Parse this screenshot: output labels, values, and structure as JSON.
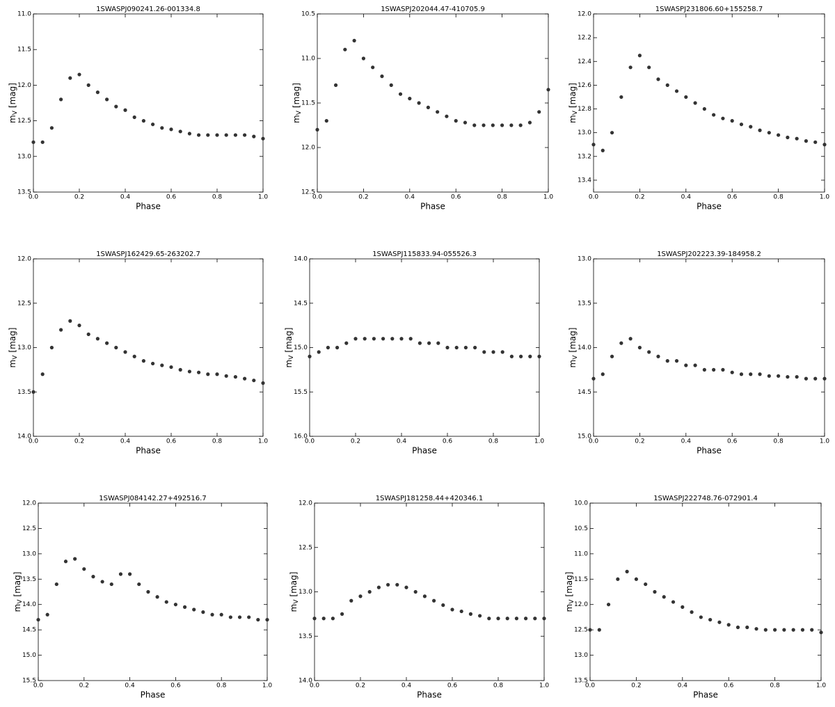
{
  "chart_data": [
    {
      "type": "scatter",
      "title": "1SWASPJ090241.26-001334.8",
      "xlabel": "Phase",
      "ylabel": "m",
      "ylabel_sub": "V",
      "ylabel_unit": "[mag]",
      "invert_y": true,
      "color": "#333333",
      "xlim": [
        0,
        1
      ],
      "ylim": [
        11,
        13.5
      ],
      "xticks": [
        {
          "value": 0,
          "label": "0.0"
        },
        0.2,
        0.4,
        0.6,
        0.8,
        {
          "value": 1,
          "label": "1.0"
        }
      ],
      "yticks": [
        {
          "value": 11,
          "label": "11.0"
        },
        11.5,
        {
          "value": 12,
          "label": "12.0"
        },
        12.5,
        {
          "value": 13,
          "label": "13.0"
        },
        13.5
      ],
      "x": [
        0,
        0.04,
        0.08,
        0.12,
        0.16,
        0.2,
        0.24,
        0.28,
        0.32,
        0.36,
        0.4,
        0.44,
        0.48,
        0.52,
        0.56,
        0.6,
        0.64,
        0.68,
        0.72,
        0.76,
        0.8,
        0.84,
        0.88,
        0.92,
        0.96,
        1
      ],
      "y": [
        12.8,
        12.8,
        12.6,
        12.2,
        11.9,
        11.85,
        12.0,
        12.1,
        12.2,
        12.3,
        12.35,
        12.45,
        12.5,
        12.55,
        12.6,
        12.62,
        12.65,
        12.68,
        12.7,
        12.7,
        12.7,
        12.7,
        12.7,
        12.7,
        12.72,
        12.75
      ]
    },
    {
      "type": "scatter",
      "title": "1SWASPJ202044.47-410705.9",
      "xlabel": "Phase",
      "ylabel": "m",
      "ylabel_sub": "V",
      "ylabel_unit": "[mag]",
      "invert_y": true,
      "color": "#333333",
      "xlim": [
        0,
        1
      ],
      "ylim": [
        10.5,
        12.5
      ],
      "xticks": [
        {
          "value": 0,
          "label": "0.0"
        },
        0.2,
        0.4,
        0.6,
        0.8,
        {
          "value": 1,
          "label": "1.0"
        }
      ],
      "yticks": [
        10.5,
        {
          "value": 11,
          "label": "11.0"
        },
        11.5,
        {
          "value": 12,
          "label": "12.0"
        },
        12.5
      ],
      "x": [
        0,
        0.04,
        0.08,
        0.12,
        0.16,
        0.2,
        0.24,
        0.28,
        0.32,
        0.36,
        0.4,
        0.44,
        0.48,
        0.52,
        0.56,
        0.6,
        0.64,
        0.68,
        0.72,
        0.76,
        0.8,
        0.84,
        0.88,
        0.92,
        0.96,
        1
      ],
      "y": [
        11.8,
        11.7,
        11.3,
        10.9,
        10.8,
        11.0,
        11.1,
        11.2,
        11.3,
        11.4,
        11.45,
        11.5,
        11.55,
        11.6,
        11.65,
        11.7,
        11.72,
        11.75,
        11.75,
        11.75,
        11.75,
        11.75,
        11.75,
        11.72,
        11.6,
        11.35
      ]
    },
    {
      "type": "scatter",
      "title": "1SWASPJ231806.60+155258.7",
      "xlabel": "Phase",
      "ylabel": "m",
      "ylabel_sub": "V",
      "ylabel_unit": "[mag]",
      "invert_y": true,
      "color": "#333333",
      "xlim": [
        0,
        1
      ],
      "ylim": [
        12,
        13.5
      ],
      "xticks": [
        {
          "value": 0,
          "label": "0.0"
        },
        0.2,
        0.4,
        0.6,
        0.8,
        {
          "value": 1,
          "label": "1.0"
        }
      ],
      "yticks": [
        {
          "value": 12,
          "label": "12.0"
        },
        12.2,
        12.4,
        12.6,
        12.8,
        {
          "value": 13,
          "label": "13.0"
        },
        13.2,
        13.4
      ],
      "x": [
        0,
        0.04,
        0.08,
        0.12,
        0.16,
        0.2,
        0.24,
        0.28,
        0.32,
        0.36,
        0.4,
        0.44,
        0.48,
        0.52,
        0.56,
        0.6,
        0.64,
        0.68,
        0.72,
        0.76,
        0.8,
        0.84,
        0.88,
        0.92,
        0.96,
        1
      ],
      "y": [
        13.1,
        13.15,
        13.0,
        12.7,
        12.45,
        12.35,
        12.45,
        12.55,
        12.6,
        12.65,
        12.7,
        12.75,
        12.8,
        12.85,
        12.88,
        12.9,
        12.93,
        12.95,
        12.98,
        13.0,
        13.02,
        13.04,
        13.05,
        13.07,
        13.08,
        13.1
      ]
    },
    {
      "type": "scatter",
      "title": "1SWASPJ162429.65-263202.7",
      "xlabel": "Phase",
      "ylabel": "m",
      "ylabel_sub": "V",
      "ylabel_unit": "[mag]",
      "invert_y": true,
      "color": "#333333",
      "xlim": [
        0,
        1
      ],
      "ylim": [
        12,
        14
      ],
      "xticks": [
        {
          "value": 0,
          "label": "0.0"
        },
        0.2,
        0.4,
        0.6,
        0.8,
        {
          "value": 1,
          "label": "1.0"
        }
      ],
      "yticks": [
        {
          "value": 12,
          "label": "12.0"
        },
        12.5,
        {
          "value": 13,
          "label": "13.0"
        },
        13.5,
        {
          "value": 14,
          "label": "14.0"
        }
      ],
      "x": [
        0,
        0.04,
        0.08,
        0.12,
        0.16,
        0.2,
        0.24,
        0.28,
        0.32,
        0.36,
        0.4,
        0.44,
        0.48,
        0.52,
        0.56,
        0.6,
        0.64,
        0.68,
        0.72,
        0.76,
        0.8,
        0.84,
        0.88,
        0.92,
        0.96,
        1
      ],
      "y": [
        13.5,
        13.3,
        13.0,
        12.8,
        12.7,
        12.75,
        12.85,
        12.9,
        12.95,
        13.0,
        13.05,
        13.1,
        13.15,
        13.18,
        13.2,
        13.22,
        13.25,
        13.27,
        13.28,
        13.3,
        13.3,
        13.32,
        13.33,
        13.35,
        13.37,
        13.4
      ]
    },
    {
      "type": "scatter",
      "title": "1SWASPJ115833.94-055526.3",
      "xlabel": "Phase",
      "ylabel": "m",
      "ylabel_sub": "V",
      "ylabel_unit": "[mag]",
      "invert_y": true,
      "color": "#333333",
      "xlim": [
        0,
        1
      ],
      "ylim": [
        14,
        16
      ],
      "xticks": [
        {
          "value": 0,
          "label": "0.0"
        },
        0.2,
        0.4,
        0.6,
        0.8,
        {
          "value": 1,
          "label": "1.0"
        }
      ],
      "yticks": [
        {
          "value": 14,
          "label": "14.0"
        },
        14.5,
        {
          "value": 15,
          "label": "15.0"
        },
        15.5,
        {
          "value": 16,
          "label": "16.0"
        }
      ],
      "x": [
        0,
        0.04,
        0.08,
        0.12,
        0.16,
        0.2,
        0.24,
        0.28,
        0.32,
        0.36,
        0.4,
        0.44,
        0.48,
        0.52,
        0.56,
        0.6,
        0.64,
        0.68,
        0.72,
        0.76,
        0.8,
        0.84,
        0.88,
        0.92,
        0.96,
        1
      ],
      "y": [
        15.1,
        15.05,
        15.0,
        15.0,
        14.95,
        14.9,
        14.9,
        14.9,
        14.9,
        14.9,
        14.9,
        14.9,
        14.95,
        14.95,
        14.95,
        15.0,
        15.0,
        15.0,
        15.0,
        15.05,
        15.05,
        15.05,
        15.1,
        15.1,
        15.1,
        15.1
      ]
    },
    {
      "type": "scatter",
      "title": "1SWASPJ202223.39-184958.2",
      "xlabel": "Phase",
      "ylabel": "m",
      "ylabel_sub": "V",
      "ylabel_unit": "[mag]",
      "invert_y": true,
      "color": "#333333",
      "xlim": [
        0,
        1
      ],
      "ylim": [
        13,
        15
      ],
      "xticks": [
        {
          "value": 0,
          "label": "0.0"
        },
        0.2,
        0.4,
        0.6,
        0.8,
        {
          "value": 1,
          "label": "1.0"
        }
      ],
      "yticks": [
        {
          "value": 13,
          "label": "13.0"
        },
        13.5,
        {
          "value": 14,
          "label": "14.0"
        },
        14.5,
        {
          "value": 15,
          "label": "15.0"
        }
      ],
      "x": [
        0,
        0.04,
        0.08,
        0.12,
        0.16,
        0.2,
        0.24,
        0.28,
        0.32,
        0.36,
        0.4,
        0.44,
        0.48,
        0.52,
        0.56,
        0.6,
        0.64,
        0.68,
        0.72,
        0.76,
        0.8,
        0.84,
        0.88,
        0.92,
        0.96,
        1
      ],
      "y": [
        14.35,
        14.3,
        14.1,
        13.95,
        13.9,
        14.0,
        14.05,
        14.1,
        14.15,
        14.15,
        14.2,
        14.2,
        14.25,
        14.25,
        14.25,
        14.28,
        14.3,
        14.3,
        14.3,
        14.32,
        14.32,
        14.33,
        14.33,
        14.35,
        14.35,
        14.35
      ]
    },
    {
      "type": "scatter",
      "title": "1SWASPJ084142.27+492516.7",
      "xlabel": "Phase",
      "ylabel": "m",
      "ylabel_sub": "V",
      "ylabel_unit": "[mag]",
      "invert_y": true,
      "color": "#333333",
      "xlim": [
        0,
        1
      ],
      "ylim": [
        12,
        15.5
      ],
      "xticks": [
        {
          "value": 0,
          "label": "0.0"
        },
        0.2,
        0.4,
        0.6,
        0.8,
        {
          "value": 1,
          "label": "1.0"
        }
      ],
      "yticks": [
        {
          "value": 12,
          "label": "12.0"
        },
        12.5,
        {
          "value": 13,
          "label": "13.0"
        },
        13.5,
        {
          "value": 14,
          "label": "14.0"
        },
        14.5,
        {
          "value": 15,
          "label": "15.0"
        },
        15.5
      ],
      "x": [
        0,
        0.04,
        0.08,
        0.12,
        0.16,
        0.2,
        0.24,
        0.28,
        0.32,
        0.36,
        0.4,
        0.44,
        0.48,
        0.52,
        0.56,
        0.6,
        0.64,
        0.68,
        0.72,
        0.76,
        0.8,
        0.84,
        0.88,
        0.92,
        0.96,
        1
      ],
      "y": [
        14.3,
        14.2,
        13.6,
        13.15,
        13.1,
        13.3,
        13.45,
        13.55,
        13.6,
        13.4,
        13.4,
        13.6,
        13.75,
        13.85,
        13.95,
        14.0,
        14.05,
        14.1,
        14.15,
        14.2,
        14.2,
        14.25,
        14.25,
        14.25,
        14.3,
        14.3
      ]
    },
    {
      "type": "scatter",
      "title": "1SWASPJ181258.44+420346.1",
      "xlabel": "Phase",
      "ylabel": "m",
      "ylabel_sub": "V",
      "ylabel_unit": "[mag]",
      "invert_y": true,
      "color": "#333333",
      "xlim": [
        0,
        1
      ],
      "ylim": [
        12,
        14
      ],
      "xticks": [
        {
          "value": 0,
          "label": "0.0"
        },
        0.2,
        0.4,
        0.6,
        0.8,
        {
          "value": 1,
          "label": "1.0"
        }
      ],
      "yticks": [
        {
          "value": 12,
          "label": "12.0"
        },
        12.5,
        {
          "value": 13,
          "label": "13.0"
        },
        13.5,
        {
          "value": 14,
          "label": "14.0"
        }
      ],
      "x": [
        0,
        0.04,
        0.08,
        0.12,
        0.16,
        0.2,
        0.24,
        0.28,
        0.32,
        0.36,
        0.4,
        0.44,
        0.48,
        0.52,
        0.56,
        0.6,
        0.64,
        0.68,
        0.72,
        0.76,
        0.8,
        0.84,
        0.88,
        0.92,
        0.96,
        1
      ],
      "y": [
        13.3,
        13.3,
        13.3,
        13.25,
        13.1,
        13.05,
        13.0,
        12.95,
        12.92,
        12.92,
        12.95,
        13.0,
        13.05,
        13.1,
        13.15,
        13.2,
        13.22,
        13.25,
        13.27,
        13.3,
        13.3,
        13.3,
        13.3,
        13.3,
        13.3,
        13.3
      ]
    },
    {
      "type": "scatter",
      "title": "1SWASPJ222748.76-072901.4",
      "xlabel": "Phase",
      "ylabel": "m",
      "ylabel_sub": "V",
      "ylabel_unit": "[mag]",
      "invert_y": true,
      "color": "#333333",
      "xlim": [
        0,
        1
      ],
      "ylim": [
        10,
        13.5
      ],
      "xticks": [
        {
          "value": 0,
          "label": "0.0"
        },
        0.2,
        0.4,
        0.6,
        0.8,
        {
          "value": 1,
          "label": "1.0"
        }
      ],
      "yticks": [
        {
          "value": 10,
          "label": "10.0"
        },
        10.5,
        {
          "value": 11,
          "label": "11.0"
        },
        11.5,
        {
          "value": 12,
          "label": "12.0"
        },
        12.5,
        {
          "value": 13,
          "label": "13.0"
        },
        13.5
      ],
      "x": [
        0,
        0.04,
        0.08,
        0.12,
        0.16,
        0.2,
        0.24,
        0.28,
        0.32,
        0.36,
        0.4,
        0.44,
        0.48,
        0.52,
        0.56,
        0.6,
        0.64,
        0.68,
        0.72,
        0.76,
        0.8,
        0.84,
        0.88,
        0.92,
        0.96,
        1
      ],
      "y": [
        12.5,
        12.5,
        12.0,
        11.5,
        11.35,
        11.5,
        11.6,
        11.75,
        11.85,
        11.95,
        12.05,
        12.15,
        12.25,
        12.3,
        12.35,
        12.4,
        12.45,
        12.45,
        12.48,
        12.5,
        12.5,
        12.5,
        12.5,
        12.5,
        12.5,
        12.55
      ]
    }
  ]
}
